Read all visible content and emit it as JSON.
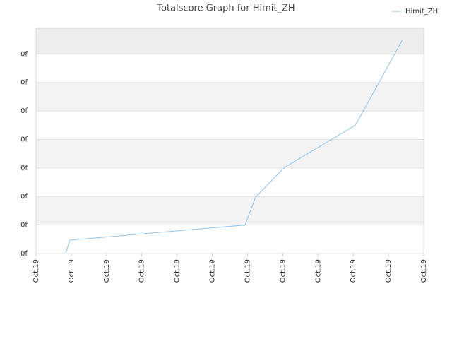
{
  "chart_data": {
    "type": "line",
    "title": "Totalscore Graph for Himit_ZH",
    "x": [
      0.84,
      0.96,
      5.93,
      6.23,
      7.05,
      9.06,
      10.4
    ],
    "series": [
      {
        "name": "Himit_ZH",
        "color": "#8cc3f0",
        "values": [
          0,
          0.47,
          1.0,
          1.98,
          3.02,
          4.5,
          7.5
        ]
      }
    ],
    "xlim": [
      0,
      11
    ],
    "ylim": [
      0,
      7.9
    ],
    "xticks": [
      {
        "value": 0,
        "label": "Oct.19"
      },
      {
        "value": 1,
        "label": "Oct.19"
      },
      {
        "value": 2,
        "label": "Oct.19"
      },
      {
        "value": 3,
        "label": "Oct.19"
      },
      {
        "value": 4,
        "label": "Oct.19"
      },
      {
        "value": 5,
        "label": "Oct.19"
      },
      {
        "value": 6,
        "label": "Oct.19"
      },
      {
        "value": 7,
        "label": "Oct.19"
      },
      {
        "value": 8,
        "label": "Oct.19"
      },
      {
        "value": 9,
        "label": "Oct.19"
      },
      {
        "value": 10,
        "label": "Oct.19"
      },
      {
        "value": 11,
        "label": "Oct.19"
      }
    ],
    "yticks": [
      {
        "value": 0,
        "label": "0f"
      },
      {
        "value": 1,
        "label": "0f"
      },
      {
        "value": 2,
        "label": "0f"
      },
      {
        "value": 3,
        "label": "0f"
      },
      {
        "value": 4,
        "label": "0f"
      },
      {
        "value": 5,
        "label": "0f"
      },
      {
        "value": 6,
        "label": "0f"
      },
      {
        "value": 7,
        "label": "0f"
      }
    ],
    "grid": true,
    "legend": "top-right"
  }
}
